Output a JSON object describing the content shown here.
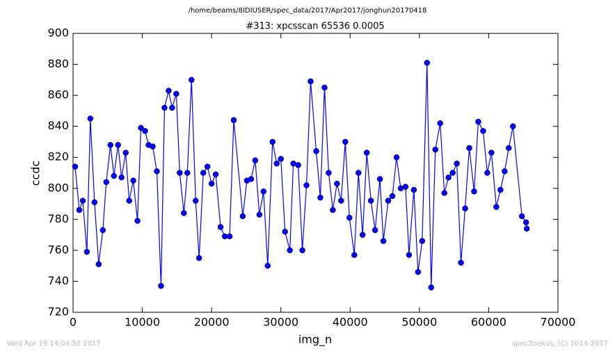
{
  "chart_data": {
    "type": "line",
    "suptitle": "/home/beams/8IDIUSER/spec_data/2017/Apr2017/jonghun20170418",
    "title": "#313: xpcsscan 65536 0.0005",
    "x_label": "img_n",
    "y_label": "ccdc",
    "footer_left": "Wed Apr 19 14:04:52 2017",
    "footer_right": "spec2nexus, (C) 2014-2017",
    "xlim": [
      0,
      70000
    ],
    "xticks": [
      0,
      10000,
      20000,
      30000,
      40000,
      50000,
      60000,
      70000
    ],
    "ylim": [
      720,
      900
    ],
    "yticks": [
      720,
      740,
      760,
      780,
      800,
      820,
      840,
      860,
      880,
      900
    ],
    "grid": false,
    "marker": "circle",
    "series": [
      {
        "color": "#0000ff",
        "x": [
          300,
          900,
          1400,
          2000,
          2500,
          3100,
          3700,
          4300,
          4800,
          5400,
          5900,
          6500,
          7000,
          7600,
          8100,
          8700,
          9300,
          9800,
          10400,
          10900,
          11500,
          12100,
          12700,
          13200,
          13800,
          14300,
          14900,
          15400,
          16000,
          16500,
          17100,
          17700,
          18200,
          18800,
          19400,
          20000,
          20600,
          21300,
          21900,
          22600,
          23200,
          24500,
          25100,
          25700,
          26300,
          26900,
          27500,
          28100,
          28800,
          29400,
          30000,
          30600,
          31300,
          31800,
          32500,
          33100,
          33700,
          34300,
          35100,
          35700,
          36300,
          36900,
          37500,
          38100,
          38700,
          39300,
          39900,
          40600,
          41200,
          41800,
          42400,
          43000,
          43600,
          44300,
          44800,
          45500,
          46100,
          46700,
          47300,
          48000,
          48500,
          49200,
          49800,
          50400,
          51100,
          51700,
          52300,
          53000,
          53600,
          54200,
          54800,
          55400,
          56000,
          56600,
          57200,
          57900,
          58500,
          59200,
          59800,
          60400,
          61100,
          61700,
          62300,
          62900,
          63500,
          64800,
          65400,
          65500
        ],
        "values": [
          814,
          786,
          792,
          759,
          845,
          791,
          751,
          773,
          804,
          828,
          808,
          828,
          807,
          823,
          792,
          805,
          779,
          839,
          837,
          828,
          827,
          811,
          737,
          852,
          863,
          852,
          861,
          810,
          784,
          810,
          870,
          792,
          755,
          810,
          814,
          803,
          809,
          775,
          769,
          769,
          844,
          782,
          805,
          806,
          818,
          783,
          798,
          750,
          830,
          816,
          819,
          772,
          760,
          816,
          815,
          760,
          802,
          869,
          824,
          794,
          865,
          810,
          786,
          803,
          792,
          830,
          781,
          757,
          810,
          770,
          823,
          792,
          773,
          806,
          766,
          792,
          795,
          820,
          800,
          801,
          757,
          799,
          746,
          766,
          881,
          736,
          825,
          842,
          797,
          807,
          810,
          816,
          752,
          787,
          826,
          798,
          843,
          837,
          810,
          823,
          788,
          799,
          811,
          826,
          840,
          782,
          778,
          774
        ]
      }
    ]
  }
}
